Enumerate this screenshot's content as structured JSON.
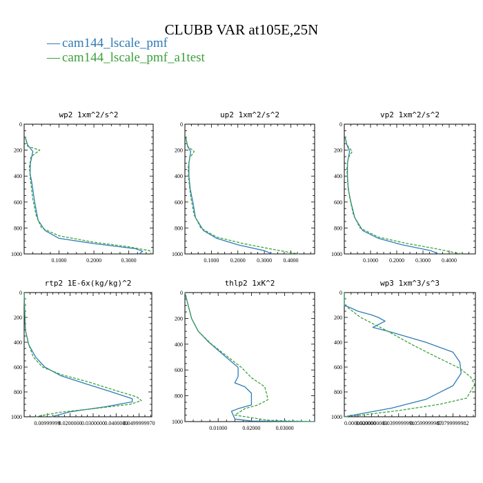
{
  "figure": {
    "title": "CLUBB VAR at105E,25N",
    "legend": [
      {
        "label": "cam144_lscale_pmf",
        "color": "#2d7bb6"
      },
      {
        "label": "cam144_lscale_pmf_a1test",
        "color": "#3aa13a"
      }
    ]
  },
  "chart_data": [
    {
      "type": "line",
      "title": "wp2  1xm^2/s^2",
      "ylim": [
        0,
        1000
      ],
      "xlim": [
        0,
        0.37
      ],
      "yticks": [
        "0",
        "200",
        "400",
        "600",
        "800",
        "1000"
      ],
      "xticks": [
        {
          "value": 0.1,
          "label": "0.1000"
        },
        {
          "value": 0.2,
          "label": "0.2000"
        },
        {
          "value": 0.3,
          "label": "0.3000"
        }
      ],
      "series": [
        {
          "name": "cam144_lscale_pmf",
          "color": "#2d7bb6",
          "dash": "",
          "x": [
            0.003,
            0.01,
            0.025,
            0.018,
            0.017,
            0.022,
            0.03,
            0.04,
            0.06,
            0.1,
            0.2,
            0.32,
            0.34,
            0.33
          ],
          "y": [
            100,
            160,
            210,
            300,
            380,
            450,
            600,
            740,
            820,
            880,
            920,
            960,
            980,
            1000
          ]
        },
        {
          "name": "cam144_lscale_pmf_a1test",
          "color": "#3aa13a",
          "dash": "4,2",
          "x": [
            0.003,
            0.01,
            0.045,
            0.02,
            0.015,
            0.018,
            0.025,
            0.035,
            0.05,
            0.1,
            0.2,
            0.3,
            0.36,
            0.365
          ],
          "y": [
            100,
            170,
            200,
            250,
            330,
            430,
            580,
            710,
            800,
            860,
            910,
            945,
            975,
            1000
          ]
        }
      ]
    },
    {
      "type": "line",
      "title": "up2  1xm^2/s^2",
      "ylim": [
        0,
        1000
      ],
      "xlim": [
        0,
        0.49
      ],
      "yticks": [
        "0",
        "200",
        "400",
        "600",
        "800",
        "1000"
      ],
      "xticks": [
        {
          "value": 0.1,
          "label": "0.1000"
        },
        {
          "value": 0.2,
          "label": "0.2000"
        },
        {
          "value": 0.3,
          "label": "0.3000"
        },
        {
          "value": 0.4,
          "label": "0.4000"
        }
      ],
      "series": [
        {
          "name": "cam144_lscale_pmf",
          "color": "#2d7bb6",
          "dash": "",
          "x": [
            0.003,
            0.01,
            0.022,
            0.015,
            0.015,
            0.02,
            0.03,
            0.04,
            0.07,
            0.12,
            0.2,
            0.3,
            0.33
          ],
          "y": [
            100,
            170,
            210,
            300,
            400,
            500,
            600,
            720,
            820,
            880,
            930,
            975,
            1000
          ]
        },
        {
          "name": "cam144_lscale_pmf_a1test",
          "color": "#3aa13a",
          "dash": "4,2",
          "x": [
            0.003,
            0.01,
            0.035,
            0.018,
            0.012,
            0.015,
            0.022,
            0.035,
            0.06,
            0.12,
            0.22,
            0.32,
            0.4,
            0.43
          ],
          "y": [
            100,
            170,
            210,
            260,
            340,
            440,
            560,
            700,
            800,
            870,
            920,
            960,
            990,
            1000
          ]
        }
      ]
    },
    {
      "type": "line",
      "title": "vp2  1xm^2/s^2",
      "ylim": [
        0,
        1000
      ],
      "xlim": [
        0,
        0.5
      ],
      "yticks": [
        "0",
        "200",
        "400",
        "600",
        "800",
        "1000"
      ],
      "xticks": [
        {
          "value": 0.1,
          "label": "0.1000"
        },
        {
          "value": 0.2,
          "label": "0.2000"
        },
        {
          "value": 0.3,
          "label": "0.3000"
        },
        {
          "value": 0.4,
          "label": "0.4000"
        }
      ],
      "series": [
        {
          "name": "cam144_lscale_pmf",
          "color": "#2d7bb6",
          "dash": "",
          "x": [
            0.003,
            0.01,
            0.02,
            0.012,
            0.012,
            0.015,
            0.025,
            0.04,
            0.07,
            0.13,
            0.22,
            0.33,
            0.36
          ],
          "y": [
            100,
            160,
            210,
            300,
            400,
            500,
            600,
            720,
            820,
            880,
            930,
            975,
            1000
          ]
        },
        {
          "name": "cam144_lscale_pmf_a1test",
          "color": "#3aa13a",
          "dash": "4,2",
          "x": [
            0.003,
            0.01,
            0.03,
            0.015,
            0.01,
            0.012,
            0.02,
            0.035,
            0.06,
            0.13,
            0.24,
            0.35,
            0.42,
            0.45
          ],
          "y": [
            100,
            160,
            210,
            260,
            340,
            440,
            560,
            700,
            800,
            870,
            920,
            960,
            990,
            1000
          ]
        }
      ]
    },
    {
      "type": "line",
      "title": "rtp2  1E-6x(kg/kg)^2",
      "ylim": [
        0,
        1000
      ],
      "xlim": [
        0,
        0.0555
      ],
      "yticks": [
        "0",
        "200",
        "400",
        "600",
        "800",
        "1000"
      ],
      "xticks": [
        {
          "value": 0.01,
          "label": "0.00999999"
        },
        {
          "value": 0.02,
          "label": "0.0200000"
        },
        {
          "value": 0.03,
          "label": "0.0300000"
        },
        {
          "value": 0.04,
          "label": "0.0400000"
        },
        {
          "value": 0.05,
          "label": "0.0499999970"
        }
      ],
      "series": [
        {
          "name": "cam144_lscale_pmf",
          "color": "#2d7bb6",
          "dash": "",
          "x": [
            0.0,
            0.0005,
            0.002,
            0.005,
            0.009,
            0.016,
            0.026,
            0.038,
            0.047,
            0.047,
            0.035,
            0.02,
            0.012
          ],
          "y": [
            0,
            300,
            420,
            520,
            600,
            670,
            730,
            800,
            855,
            880,
            920,
            960,
            1000
          ]
        },
        {
          "name": "cam144_lscale_pmf_a1test",
          "color": "#3aa13a",
          "dash": "4,2",
          "x": [
            0.0,
            0.0005,
            0.002,
            0.004,
            0.008,
            0.016,
            0.028,
            0.04,
            0.049,
            0.051,
            0.046,
            0.03,
            0.015,
            0.005
          ],
          "y": [
            0,
            300,
            420,
            520,
            600,
            660,
            720,
            790,
            840,
            870,
            900,
            935,
            965,
            1000
          ]
        }
      ]
    },
    {
      "type": "line",
      "title": "thlp2  1xK^2",
      "ylim": [
        0,
        1000
      ],
      "xlim": [
        0,
        0.039
      ],
      "yticks": [
        "0",
        "200",
        "400",
        "600",
        "800",
        "1000"
      ],
      "xticks": [
        {
          "value": 0.01,
          "label": "0.01000"
        },
        {
          "value": 0.02,
          "label": "0.02000"
        },
        {
          "value": 0.03,
          "label": "0.03000"
        }
      ],
      "series": [
        {
          "name": "cam144_lscale_pmf",
          "color": "#2d7bb6",
          "dash": "",
          "x": [
            0.0,
            0.001,
            0.002,
            0.004,
            0.007,
            0.011,
            0.016,
            0.016,
            0.015,
            0.018,
            0.02,
            0.02,
            0.016,
            0.014,
            0.015,
            0.02,
            0.039
          ],
          "y": [
            0,
            100,
            200,
            300,
            380,
            470,
            580,
            650,
            700,
            730,
            780,
            870,
            900,
            920,
            980,
            995,
            1000
          ]
        },
        {
          "name": "cam144_lscale_pmf_a1test",
          "color": "#3aa13a",
          "dash": "4,2",
          "x": [
            0.0,
            0.001,
            0.002,
            0.004,
            0.008,
            0.013,
            0.017,
            0.02,
            0.024,
            0.025,
            0.022,
            0.018,
            0.015,
            0.025,
            0.038
          ],
          "y": [
            0,
            100,
            200,
            300,
            400,
            500,
            580,
            660,
            730,
            830,
            870,
            900,
            950,
            990,
            1000
          ]
        }
      ]
    },
    {
      "type": "line",
      "title": "wp3  1xm^3/s^3",
      "ylim": [
        0,
        1000
      ],
      "xlim": [
        0,
        0.0965
      ],
      "yticks": [
        "0",
        "200",
        "400",
        "600",
        "800",
        "1000"
      ],
      "xticks": [
        {
          "value": 0.0,
          "label": "0.0000000000"
        },
        {
          "value": 0.02,
          "label": "0.0200000003"
        },
        {
          "value": 0.04,
          "label": "0.0399999991"
        },
        {
          "value": 0.06,
          "label": "0.0599999987"
        },
        {
          "value": 0.08,
          "label": "0.0799999982"
        }
      ],
      "series": [
        {
          "name": "cam144_lscale_pmf",
          "color": "#2d7bb6",
          "dash": "",
          "x": [
            0.0,
            0.0,
            0.01,
            0.02,
            0.025,
            0.03,
            0.021,
            0.035,
            0.06,
            0.08,
            0.085,
            0.086,
            0.08,
            0.06,
            0.035,
            0.01,
            0.0
          ],
          "y": [
            0,
            100,
            150,
            180,
            200,
            230,
            280,
            320,
            400,
            480,
            560,
            650,
            750,
            860,
            930,
            980,
            1000
          ]
        },
        {
          "name": "cam144_lscale_pmf_a1test",
          "color": "#3aa13a",
          "dash": "4,2",
          "x": [
            0.0,
            0.0,
            0.006,
            0.012,
            0.03,
            0.05,
            0.07,
            0.085,
            0.093,
            0.096,
            0.09,
            0.07,
            0.04,
            0.01,
            0.0
          ],
          "y": [
            0,
            100,
            150,
            200,
            300,
            420,
            530,
            610,
            680,
            740,
            850,
            900,
            950,
            990,
            1000
          ]
        }
      ]
    }
  ]
}
